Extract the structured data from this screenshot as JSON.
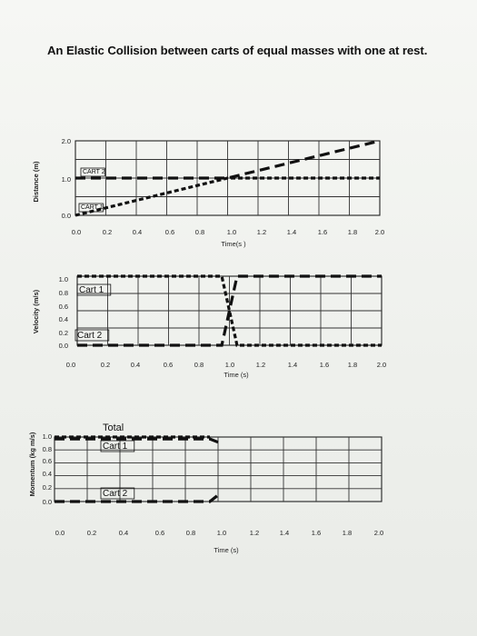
{
  "title": "An Elastic Collision between carts of equal masses with one at rest.",
  "chart_data": [
    {
      "type": "line",
      "ylabel": "Distance (m)",
      "xlabel": "Time(s )",
      "x_ticks": [
        "0.0",
        "0.2",
        "0.4",
        "0.6",
        "0.8",
        "1.0",
        "1.2",
        "1.4",
        "1.6",
        "1.8",
        "2.0"
      ],
      "y_ticks": [
        "0.0",
        "1.0",
        "2.0"
      ],
      "xlim": [
        0,
        2.0
      ],
      "ylim": [
        0,
        2.0
      ],
      "grid": true,
      "annotations": [
        "CART 2",
        "CART 1"
      ],
      "series": [
        {
          "name": "CART 2",
          "x": [
            0,
            1.0,
            2.0
          ],
          "y": [
            1.0,
            1.0,
            2.0
          ],
          "dash": "long"
        },
        {
          "name": "CART 1",
          "x": [
            0,
            1.0,
            2.0
          ],
          "y": [
            0.0,
            1.0,
            1.0
          ],
          "dash": "short"
        }
      ]
    },
    {
      "type": "line",
      "ylabel": "Velocity (m/s)",
      "xlabel": "Time (s)",
      "x_ticks": [
        "0.0",
        "0.2",
        "0.4",
        "0.6",
        "0.8",
        "1.0",
        "1.2",
        "1.4",
        "1.6",
        "1.8",
        "2.0"
      ],
      "y_ticks": [
        "0.0",
        "0.2",
        "0.4",
        "0.6",
        "0.8",
        "1.0"
      ],
      "xlim": [
        0,
        2.0
      ],
      "ylim": [
        0,
        1.0
      ],
      "grid": true,
      "annotations": [
        "Cart 1",
        "Cart 2"
      ],
      "series": [
        {
          "name": "Cart 1",
          "x": [
            0,
            0.95,
            1.05,
            2.0
          ],
          "y": [
            1.0,
            1.0,
            0.0,
            0.0
          ],
          "dash": "short"
        },
        {
          "name": "Cart 2",
          "x": [
            0,
            0.95,
            1.05,
            2.0
          ],
          "y": [
            0.0,
            0.0,
            1.0,
            1.0
          ],
          "dash": "long"
        }
      ]
    },
    {
      "type": "line",
      "ylabel": "Momentum (kg m/s)",
      "xlabel": "Time (s)",
      "x_ticks": [
        "0.0",
        "0.2",
        "0.4",
        "0.6",
        "0.8",
        "1.0",
        "1.2",
        "1.4",
        "1.6",
        "1.8",
        "2.0"
      ],
      "y_ticks": [
        "0.0",
        "0.2",
        "0.4",
        "0.6",
        "0.8",
        "1.0"
      ],
      "xlim": [
        0,
        2.0
      ],
      "ylim": [
        0,
        1.0
      ],
      "grid": true,
      "annotations": [
        "Total",
        "Cart 1",
        "Cart 2"
      ],
      "series": [
        {
          "name": "Total",
          "x": [
            0,
            0.95
          ],
          "y": [
            1.0,
            1.0
          ],
          "dash": "short"
        },
        {
          "name": "Cart 1",
          "x": [
            0,
            0.95,
            1.0
          ],
          "y": [
            0.97,
            0.97,
            0.92
          ],
          "dash": "long"
        },
        {
          "name": "Cart 2",
          "x": [
            0,
            0.95,
            1.0
          ],
          "y": [
            0.0,
            0.0,
            0.1
          ],
          "dash": "long"
        }
      ]
    }
  ]
}
